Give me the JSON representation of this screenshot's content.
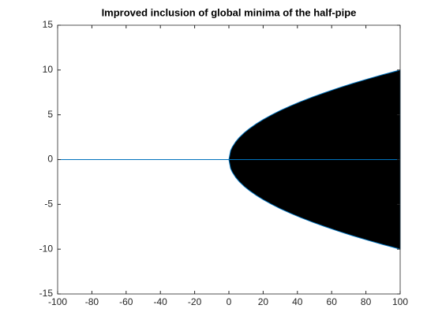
{
  "chart_data": {
    "type": "area",
    "title": "Improved inclusion of global minima of the half-pipe",
    "x": [
      -100,
      0,
      1,
      2,
      4,
      6,
      9,
      12,
      16,
      20,
      25,
      30,
      36,
      42,
      49,
      56,
      64,
      72,
      81,
      90,
      100
    ],
    "series": [
      {
        "color": "#000000",
        "values": [
          0,
          0,
          1,
          1.41,
          2,
          2.45,
          3,
          3.46,
          4,
          4.47,
          5,
          5.48,
          6,
          6.48,
          7,
          7.48,
          8,
          8.49,
          9,
          9.49,
          10
        ]
      },
      {
        "color": "#000000",
        "values": [
          0,
          0,
          -1,
          -1.41,
          -2,
          -2.45,
          -3,
          -3.46,
          -4,
          -4.47,
          -5,
          -5.48,
          -6,
          -6.48,
          -7,
          -7.48,
          -8,
          -8.49,
          -9,
          -9.49,
          -10
        ]
      }
    ],
    "xlim": [
      -100,
      100
    ],
    "xticks": [
      -100,
      -80,
      -60,
      -40,
      -20,
      0,
      20,
      40,
      60,
      80,
      100
    ],
    "ylim": [
      -15,
      15
    ],
    "yticks": [
      -15,
      -10,
      -5,
      0,
      5,
      10,
      15
    ]
  }
}
